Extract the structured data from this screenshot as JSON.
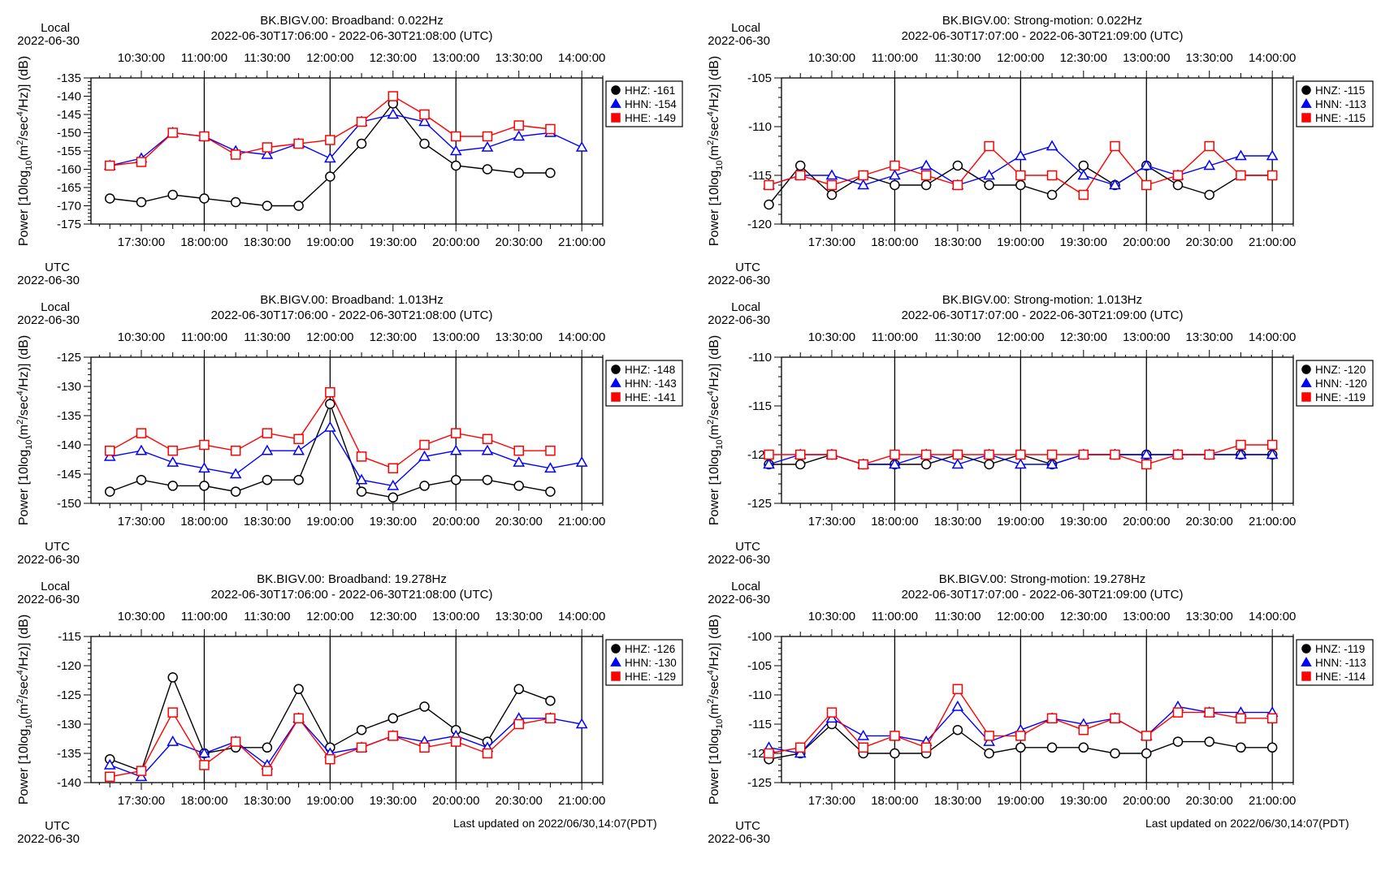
{
  "local_label": "Local",
  "utc_label": "UTC",
  "date_label": "2022-06-30",
  "ylabel_prefix": "Power [10log",
  "ylabel_sub": "10",
  "ylabel_mid": "(m",
  "ylabel_sup1": "2",
  "ylabel_mid2": "/sec",
  "ylabel_sup2": "4",
  "ylabel_suffix": "/Hz)] (dB)",
  "footer_left": "Last updated on 2022/06/30,14:07(PDT)",
  "footer_right": "Last updated on 2022/06/30,14:07(PDT)",
  "utc_ticks": [
    "17:30:00",
    "18:00:00",
    "18:30:00",
    "19:00:00",
    "19:30:00",
    "20:00:00",
    "20:30:00",
    "21:00:00"
  ],
  "local_ticks": [
    "10:30:00",
    "11:00:00",
    "11:30:00",
    "12:00:00",
    "12:30:00",
    "13:00:00",
    "13:30:00",
    "14:00:00"
  ],
  "colors": {
    "Z": "#000000",
    "N": "#0000ff",
    "E": "#ff0000"
  },
  "chart_data": [
    {
      "type": "line",
      "title": "BK.BIGV.00: Broadband: 0.022Hz",
      "subtitle": "2022-06-30T17:06:00 - 2022-06-30T21:08:00 (UTC)",
      "ylim": [
        -175,
        -135
      ],
      "yticks": [
        -135,
        -140,
        -145,
        -150,
        -155,
        -160,
        -165,
        -170,
        -175
      ],
      "legend": "top-right",
      "series": [
        {
          "name": "HHZ",
          "legend": "HHZ: -161",
          "marker": "circle",
          "color": "#000000",
          "x": [
            "17:15",
            "17:30",
            "17:45",
            "18:00",
            "18:15",
            "18:30",
            "18:45",
            "19:00",
            "19:15",
            "19:30",
            "19:45",
            "20:00",
            "20:15",
            "20:30",
            "20:45"
          ],
          "values": [
            -168,
            -169,
            -167,
            -168,
            -169,
            -170,
            -170,
            -162,
            -153,
            -142,
            -153,
            -159,
            -160,
            -161,
            -161
          ]
        },
        {
          "name": "HHN",
          "legend": "HHN: -154",
          "marker": "triangle",
          "color": "#0000ff",
          "x": [
            "17:15",
            "17:30",
            "17:45",
            "18:00",
            "18:15",
            "18:30",
            "18:45",
            "19:00",
            "19:15",
            "19:30",
            "19:45",
            "20:00",
            "20:15",
            "20:30",
            "20:45",
            "21:00"
          ],
          "values": [
            -159,
            -157,
            -150,
            -151,
            -155,
            -156,
            -153,
            -157,
            -147,
            -145,
            -147,
            -155,
            -154,
            -151,
            -150,
            -154
          ]
        },
        {
          "name": "HHE",
          "legend": "HHE: -149",
          "marker": "square",
          "color": "#ff0000",
          "x": [
            "17:15",
            "17:30",
            "17:45",
            "18:00",
            "18:15",
            "18:30",
            "18:45",
            "19:00",
            "19:15",
            "19:30",
            "19:45",
            "20:00",
            "20:15",
            "20:30",
            "20:45"
          ],
          "values": [
            -159,
            -158,
            -150,
            -151,
            -156,
            -154,
            -153,
            -152,
            -147,
            -140,
            -145,
            -151,
            -151,
            -148,
            -149
          ]
        }
      ]
    },
    {
      "type": "line",
      "title": "BK.BIGV.00: Strong-motion: 0.022Hz",
      "subtitle": "2022-06-30T17:07:00 - 2022-06-30T21:09:00 (UTC)",
      "ylim": [
        -120,
        -105
      ],
      "yticks": [
        -105,
        -110,
        -115,
        -120
      ],
      "legend": "top-right",
      "series": [
        {
          "name": "HNZ",
          "legend": "HNZ: -115",
          "marker": "circle",
          "color": "#000000",
          "x": [
            "17:00",
            "17:15",
            "17:30",
            "17:45",
            "18:00",
            "18:15",
            "18:30",
            "18:45",
            "19:00",
            "19:15",
            "19:30",
            "19:45",
            "20:00",
            "20:15",
            "20:30",
            "20:45",
            "21:00"
          ],
          "values": [
            -118,
            -114,
            -117,
            -115,
            -116,
            -116,
            -114,
            -116,
            -116,
            -117,
            -114,
            -116,
            -114,
            -116,
            -117,
            -115,
            -115
          ]
        },
        {
          "name": "HNN",
          "legend": "HNN: -113",
          "marker": "triangle",
          "color": "#0000ff",
          "x": [
            "17:00",
            "17:15",
            "17:30",
            "17:45",
            "18:00",
            "18:15",
            "18:30",
            "18:45",
            "19:00",
            "19:15",
            "19:30",
            "19:45",
            "20:00",
            "20:15",
            "20:30",
            "20:45",
            "21:00"
          ],
          "values": [
            -116,
            -115,
            -115,
            -116,
            -115,
            -114,
            -116,
            -115,
            -113,
            -112,
            -115,
            -116,
            -114,
            -115,
            -114,
            -113,
            -113
          ]
        },
        {
          "name": "HNE",
          "legend": "HNE: -115",
          "marker": "square",
          "color": "#ff0000",
          "x": [
            "17:00",
            "17:15",
            "17:30",
            "17:45",
            "18:00",
            "18:15",
            "18:30",
            "18:45",
            "19:00",
            "19:15",
            "19:30",
            "19:45",
            "20:00",
            "20:15",
            "20:30",
            "20:45",
            "21:00"
          ],
          "values": [
            -116,
            -115,
            -116,
            -115,
            -114,
            -115,
            -116,
            -112,
            -115,
            -115,
            -117,
            -112,
            -116,
            -115,
            -112,
            -115,
            -115
          ]
        }
      ]
    },
    {
      "type": "line",
      "title": "BK.BIGV.00: Broadband: 1.013Hz",
      "subtitle": "2022-06-30T17:06:00 - 2022-06-30T21:08:00 (UTC)",
      "ylim": [
        -150,
        -125
      ],
      "yticks": [
        -125,
        -130,
        -135,
        -140,
        -145,
        -150
      ],
      "legend": "top-right",
      "series": [
        {
          "name": "HHZ",
          "legend": "HHZ: -148",
          "marker": "circle",
          "color": "#000000",
          "x": [
            "17:15",
            "17:30",
            "17:45",
            "18:00",
            "18:15",
            "18:30",
            "18:45",
            "19:00",
            "19:15",
            "19:30",
            "19:45",
            "20:00",
            "20:15",
            "20:30",
            "20:45"
          ],
          "values": [
            -148,
            -146,
            -147,
            -147,
            -148,
            -146,
            -146,
            -133,
            -148,
            -149,
            -147,
            -146,
            -146,
            -147,
            -148
          ]
        },
        {
          "name": "HHN",
          "legend": "HHN: -143",
          "marker": "triangle",
          "color": "#0000ff",
          "x": [
            "17:15",
            "17:30",
            "17:45",
            "18:00",
            "18:15",
            "18:30",
            "18:45",
            "19:00",
            "19:15",
            "19:30",
            "19:45",
            "20:00",
            "20:15",
            "20:30",
            "20:45",
            "21:00"
          ],
          "values": [
            -142,
            -141,
            -143,
            -144,
            -145,
            -141,
            -141,
            -137,
            -146,
            -147,
            -142,
            -141,
            -141,
            -143,
            -144,
            -143
          ]
        },
        {
          "name": "HHE",
          "legend": "HHE: -141",
          "marker": "square",
          "color": "#ff0000",
          "x": [
            "17:15",
            "17:30",
            "17:45",
            "18:00",
            "18:15",
            "18:30",
            "18:45",
            "19:00",
            "19:15",
            "19:30",
            "19:45",
            "20:00",
            "20:15",
            "20:30",
            "20:45"
          ],
          "values": [
            -141,
            -138,
            -141,
            -140,
            -141,
            -138,
            -139,
            -131,
            -142,
            -144,
            -140,
            -138,
            -139,
            -141,
            -141
          ]
        }
      ]
    },
    {
      "type": "line",
      "title": "BK.BIGV.00: Strong-motion: 1.013Hz",
      "subtitle": "2022-06-30T17:07:00 - 2022-06-30T21:09:00 (UTC)",
      "ylim": [
        -125,
        -110
      ],
      "yticks": [
        -110,
        -115,
        -120,
        -125
      ],
      "legend": "top-right",
      "series": [
        {
          "name": "HNZ",
          "legend": "HNZ: -120",
          "marker": "circle",
          "color": "#000000",
          "x": [
            "17:00",
            "17:15",
            "17:30",
            "17:45",
            "18:00",
            "18:15",
            "18:30",
            "18:45",
            "19:00",
            "19:15",
            "19:30",
            "19:45",
            "20:00",
            "20:15",
            "20:30",
            "20:45",
            "21:00"
          ],
          "values": [
            -121,
            -121,
            -120,
            -121,
            -121,
            -121,
            -120,
            -121,
            -120,
            -121,
            -120,
            -120,
            -120,
            -120,
            -120,
            -120,
            -120
          ]
        },
        {
          "name": "HNN",
          "legend": "HNN: -120",
          "marker": "triangle",
          "color": "#0000ff",
          "x": [
            "17:00",
            "17:15",
            "17:30",
            "17:45",
            "18:00",
            "18:15",
            "18:30",
            "18:45",
            "19:00",
            "19:15",
            "19:30",
            "19:45",
            "20:00",
            "20:15",
            "20:30",
            "20:45",
            "21:00"
          ],
          "values": [
            -121,
            -120,
            -120,
            -121,
            -121,
            -120,
            -121,
            -120,
            -121,
            -121,
            -120,
            -120,
            -120,
            -120,
            -120,
            -120,
            -120
          ]
        },
        {
          "name": "HNE",
          "legend": "HNE: -119",
          "marker": "square",
          "color": "#ff0000",
          "x": [
            "17:00",
            "17:15",
            "17:30",
            "17:45",
            "18:00",
            "18:15",
            "18:30",
            "18:45",
            "19:00",
            "19:15",
            "19:30",
            "19:45",
            "20:00",
            "20:15",
            "20:30",
            "20:45",
            "21:00"
          ],
          "values": [
            -120,
            -120,
            -120,
            -121,
            -120,
            -120,
            -120,
            -120,
            -120,
            -120,
            -120,
            -120,
            -121,
            -120,
            -120,
            -119,
            -119
          ]
        }
      ]
    },
    {
      "type": "line",
      "title": "BK.BIGV.00: Broadband: 19.278Hz",
      "subtitle": "2022-06-30T17:06:00 - 2022-06-30T21:08:00 (UTC)",
      "ylim": [
        -140,
        -115
      ],
      "yticks": [
        -115,
        -120,
        -125,
        -130,
        -135,
        -140
      ],
      "legend": "top-right",
      "series": [
        {
          "name": "HHZ",
          "legend": "HHZ: -126",
          "marker": "circle",
          "color": "#000000",
          "x": [
            "17:15",
            "17:30",
            "17:45",
            "18:00",
            "18:15",
            "18:30",
            "18:45",
            "19:00",
            "19:15",
            "19:30",
            "19:45",
            "20:00",
            "20:15",
            "20:30",
            "20:45"
          ],
          "values": [
            -136,
            -138,
            -122,
            -135,
            -134,
            -134,
            -124,
            -134,
            -131,
            -129,
            -127,
            -131,
            -133,
            -124,
            -126
          ]
        },
        {
          "name": "HHN",
          "legend": "HHN: -130",
          "marker": "triangle",
          "color": "#0000ff",
          "x": [
            "17:15",
            "17:30",
            "17:45",
            "18:00",
            "18:15",
            "18:30",
            "18:45",
            "19:00",
            "19:15",
            "19:30",
            "19:45",
            "20:00",
            "20:15",
            "20:30",
            "20:45",
            "21:00"
          ],
          "values": [
            -137,
            -139,
            -133,
            -135,
            -133,
            -137,
            -129,
            -135,
            -134,
            -132,
            -133,
            -132,
            -134,
            -129,
            -129,
            -130
          ]
        },
        {
          "name": "HHE",
          "legend": "HHE: -129",
          "marker": "square",
          "color": "#ff0000",
          "x": [
            "17:15",
            "17:30",
            "17:45",
            "18:00",
            "18:15",
            "18:30",
            "18:45",
            "19:00",
            "19:15",
            "19:30",
            "19:45",
            "20:00",
            "20:15",
            "20:30",
            "20:45"
          ],
          "values": [
            -139,
            -138,
            -128,
            -137,
            -133,
            -138,
            -129,
            -136,
            -134,
            -132,
            -134,
            -133,
            -135,
            -130,
            -129
          ]
        }
      ]
    },
    {
      "type": "line",
      "title": "BK.BIGV.00: Strong-motion: 19.278Hz",
      "subtitle": "2022-06-30T17:07:00 - 2022-06-30T21:09:00 (UTC)",
      "ylim": [
        -125,
        -100
      ],
      "yticks": [
        -100,
        -105,
        -110,
        -115,
        -120,
        -125
      ],
      "legend": "top-right",
      "series": [
        {
          "name": "HNZ",
          "legend": "HNZ: -119",
          "marker": "circle",
          "color": "#000000",
          "x": [
            "17:00",
            "17:15",
            "17:30",
            "17:45",
            "18:00",
            "18:15",
            "18:30",
            "18:45",
            "19:00",
            "19:15",
            "19:30",
            "19:45",
            "20:00",
            "20:15",
            "20:30",
            "20:45",
            "21:00"
          ],
          "values": [
            -121,
            -120,
            -115,
            -120,
            -120,
            -120,
            -116,
            -120,
            -119,
            -119,
            -119,
            -120,
            -120,
            -118,
            -118,
            -119,
            -119
          ]
        },
        {
          "name": "HNN",
          "legend": "HNN: -113",
          "marker": "triangle",
          "color": "#0000ff",
          "x": [
            "17:00",
            "17:15",
            "17:30",
            "17:45",
            "18:00",
            "18:15",
            "18:30",
            "18:45",
            "19:00",
            "19:15",
            "19:30",
            "19:45",
            "20:00",
            "20:15",
            "20:30",
            "20:45",
            "21:00"
          ],
          "values": [
            -119,
            -120,
            -114,
            -117,
            -117,
            -118,
            -112,
            -118,
            -116,
            -114,
            -115,
            -114,
            -117,
            -112,
            -113,
            -113,
            -113
          ]
        },
        {
          "name": "HNE",
          "legend": "HNE: -114",
          "marker": "square",
          "color": "#ff0000",
          "x": [
            "17:00",
            "17:15",
            "17:30",
            "17:45",
            "18:00",
            "18:15",
            "18:30",
            "18:45",
            "19:00",
            "19:15",
            "19:30",
            "19:45",
            "20:00",
            "20:15",
            "20:30",
            "20:45",
            "21:00"
          ],
          "values": [
            -120,
            -119,
            -113,
            -119,
            -117,
            -119,
            -109,
            -117,
            -117,
            -114,
            -116,
            -114,
            -117,
            -113,
            -113,
            -114,
            -114
          ]
        }
      ]
    }
  ]
}
